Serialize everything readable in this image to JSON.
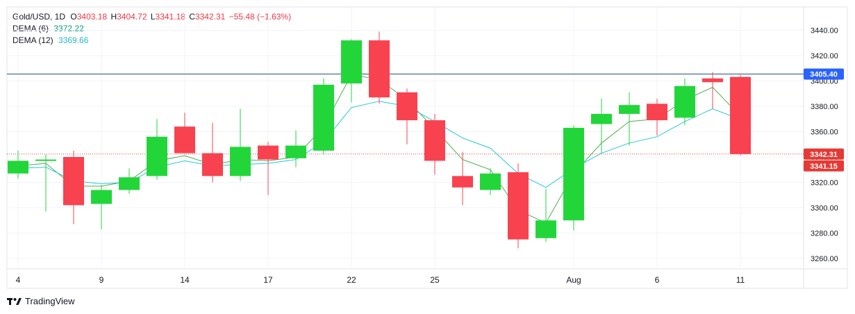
{
  "legend": {
    "symbol": "Gold/USD, 1D",
    "open_label": "O",
    "open": "3403.18",
    "high_label": "H",
    "high": "3404.72",
    "low_label": "L",
    "low": "3341.18",
    "close_label": "C",
    "close": "3342.31",
    "change": "−55.48 (−1.63%)",
    "dema6_label": "DEMA (6)",
    "dema6_value": "3372.22",
    "dema12_label": "DEMA (12)",
    "dema12_value": "3369.66"
  },
  "brand": {
    "name": "TradingView"
  },
  "colors": {
    "up": "#22d63a",
    "down": "#f8424f",
    "dema6": "#4caf50",
    "dema12": "#26c6da",
    "price_line": "#e53935",
    "horizontal_line": "#1e4d8c",
    "grid": "#f0f3fa",
    "axis_text": "#131722"
  },
  "chart_data": {
    "type": "candlestick",
    "instrument": "Gold/USD",
    "interval": "1D",
    "ylim": [
      3250,
      3455
    ],
    "y_ticks": [
      "3260.00",
      "3280.00",
      "3300.00",
      "3320.00",
      "3340.00",
      "3360.00",
      "3380.00",
      "3400.00",
      "3420.00",
      "3440.00"
    ],
    "x_ticks": [
      {
        "index": 0,
        "label": "4"
      },
      {
        "index": 3,
        "label": "9"
      },
      {
        "index": 6,
        "label": "14"
      },
      {
        "index": 9,
        "label": "17"
      },
      {
        "index": 12,
        "label": "22"
      },
      {
        "index": 15,
        "label": "25"
      },
      {
        "index": 20,
        "label": "Aug"
      },
      {
        "index": 23,
        "label": "6"
      },
      {
        "index": 26,
        "label": "11"
      }
    ],
    "candles": [
      {
        "o": 3327,
        "h": 3345,
        "l": 3323,
        "c": 3337
      },
      {
        "o": 3338,
        "h": 3342,
        "l": 3297,
        "c": 3338
      },
      {
        "o": 3340,
        "h": 3345,
        "l": 3287,
        "c": 3302
      },
      {
        "o": 3303,
        "h": 3318,
        "l": 3283,
        "c": 3314
      },
      {
        "o": 3314,
        "h": 3331,
        "l": 3311,
        "c": 3324
      },
      {
        "o": 3325,
        "h": 3370,
        "l": 3322,
        "c": 3356
      },
      {
        "o": 3364,
        "h": 3375,
        "l": 3343,
        "c": 3343
      },
      {
        "o": 3343,
        "h": 3367,
        "l": 3320,
        "c": 3325
      },
      {
        "o": 3325,
        "h": 3378,
        "l": 3321,
        "c": 3348
      },
      {
        "o": 3349,
        "h": 3352,
        "l": 3310,
        "c": 3338
      },
      {
        "o": 3339,
        "h": 3361,
        "l": 3332,
        "c": 3349
      },
      {
        "o": 3345,
        "h": 3402,
        "l": 3342,
        "c": 3397
      },
      {
        "o": 3398,
        "h": 3433,
        "l": 3383,
        "c": 3432
      },
      {
        "o": 3432,
        "h": 3439,
        "l": 3382,
        "c": 3387
      },
      {
        "o": 3391,
        "h": 3394,
        "l": 3350,
        "c": 3369
      },
      {
        "o": 3369,
        "h": 3374,
        "l": 3326,
        "c": 3337
      },
      {
        "o": 3325,
        "h": 3344,
        "l": 3302,
        "c": 3316
      },
      {
        "o": 3314,
        "h": 3331,
        "l": 3310,
        "c": 3327
      },
      {
        "o": 3328,
        "h": 3335,
        "l": 3268,
        "c": 3275
      },
      {
        "o": 3276,
        "h": 3315,
        "l": 3273,
        "c": 3290
      },
      {
        "o": 3290,
        "h": 3365,
        "l": 3282,
        "c": 3363
      },
      {
        "o": 3366,
        "h": 3386,
        "l": 3343,
        "c": 3374
      },
      {
        "o": 3374,
        "h": 3391,
        "l": 3349,
        "c": 3381
      },
      {
        "o": 3382,
        "h": 3386,
        "l": 3357,
        "c": 3369
      },
      {
        "o": 3371,
        "h": 3402,
        "l": 3365,
        "c": 3396
      },
      {
        "o": 3402,
        "h": 3407,
        "l": 3378,
        "c": 3399
      },
      {
        "o": 3403.18,
        "h": 3404.72,
        "l": 3341.18,
        "c": 3342.31
      }
    ],
    "series": [
      {
        "name": "DEMA (6)",
        "values": [
          3333,
          3335,
          3317,
          3317,
          3321,
          3337,
          3341,
          3334,
          3338,
          3337,
          3340,
          3364,
          3405,
          3401,
          3385,
          3362,
          3338,
          3330,
          3298,
          3288,
          3327,
          3351,
          3368,
          3370,
          3385,
          3395,
          3372.22
        ]
      },
      {
        "name": "DEMA (12)",
        "values": [
          3331,
          3332,
          3321,
          3319,
          3320,
          3332,
          3337,
          3333,
          3334,
          3335,
          3338,
          3352,
          3379,
          3384,
          3380,
          3368,
          3355,
          3347,
          3327,
          3316,
          3331,
          3343,
          3351,
          3356,
          3368,
          3378,
          3369.66
        ]
      }
    ],
    "horizontal_line": {
      "value": 3405.4,
      "label": "3405.40"
    },
    "last_price": {
      "value": 3342.31,
      "label": "3342.31"
    },
    "secondary_price_label": "3341.15"
  }
}
